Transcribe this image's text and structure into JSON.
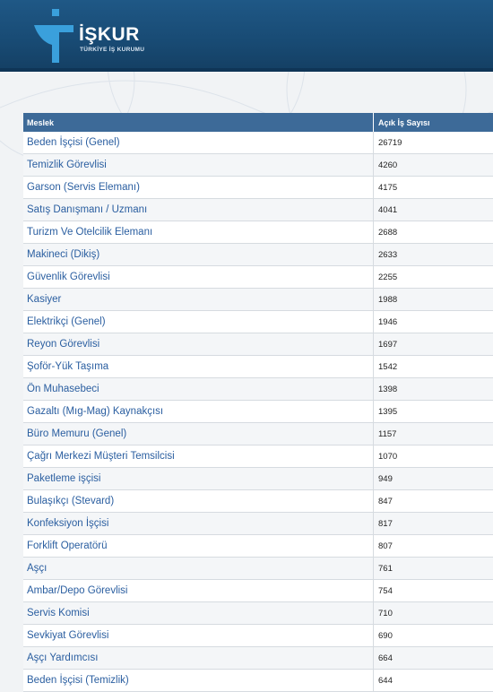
{
  "header": {
    "brand": "İŞKUR",
    "subtitle": "TÜRKİYE İŞ KURUMU",
    "colors": {
      "bar": "#1f5886",
      "accent": "#ffffff",
      "logo_blue": "#3aa0dc"
    }
  },
  "table": {
    "headers": [
      "Meslek",
      "Açık İş Sayısı"
    ],
    "rows": [
      {
        "job": "Beden İşçisi (Genel)",
        "count": "26719"
      },
      {
        "job": "Temizlik Görevlisi",
        "count": "4260"
      },
      {
        "job": "Garson (Servis Elemanı)",
        "count": "4175"
      },
      {
        "job": "Satış Danışmanı / Uzmanı",
        "count": "4041"
      },
      {
        "job": "Turizm Ve Otelcilik Elemanı",
        "count": "2688"
      },
      {
        "job": "Makineci (Dikiş)",
        "count": "2633"
      },
      {
        "job": "Güvenlik Görevlisi",
        "count": "2255"
      },
      {
        "job": "Kasiyer",
        "count": "1988"
      },
      {
        "job": "Elektrikçi (Genel)",
        "count": "1946"
      },
      {
        "job": "Reyon Görevlisi",
        "count": "1697"
      },
      {
        "job": "Şoför-Yük Taşıma",
        "count": "1542"
      },
      {
        "job": "Ön Muhasebeci",
        "count": "1398"
      },
      {
        "job": "Gazaltı (Mıg-Mag) Kaynakçısı",
        "count": "1395"
      },
      {
        "job": "Büro Memuru (Genel)",
        "count": "1157"
      },
      {
        "job": "Çağrı Merkezi Müşteri Temsilcisi",
        "count": "1070"
      },
      {
        "job": "Paketleme işçisi",
        "count": "949"
      },
      {
        "job": "Bulaşıkçı (Stevard)",
        "count": "847"
      },
      {
        "job": "Konfeksiyon İşçisi",
        "count": "817"
      },
      {
        "job": "Forklift Operatörü",
        "count": "807"
      },
      {
        "job": "Aşçı",
        "count": "761"
      },
      {
        "job": "Ambar/Depo Görevlisi",
        "count": "754"
      },
      {
        "job": "Servis Komisi",
        "count": "710"
      },
      {
        "job": "Sevkiyat Görevlisi",
        "count": "690"
      },
      {
        "job": "Aşçı Yardımcısı",
        "count": "664"
      },
      {
        "job": "Beden İşçisi (Temizlik)",
        "count": "644"
      }
    ]
  }
}
